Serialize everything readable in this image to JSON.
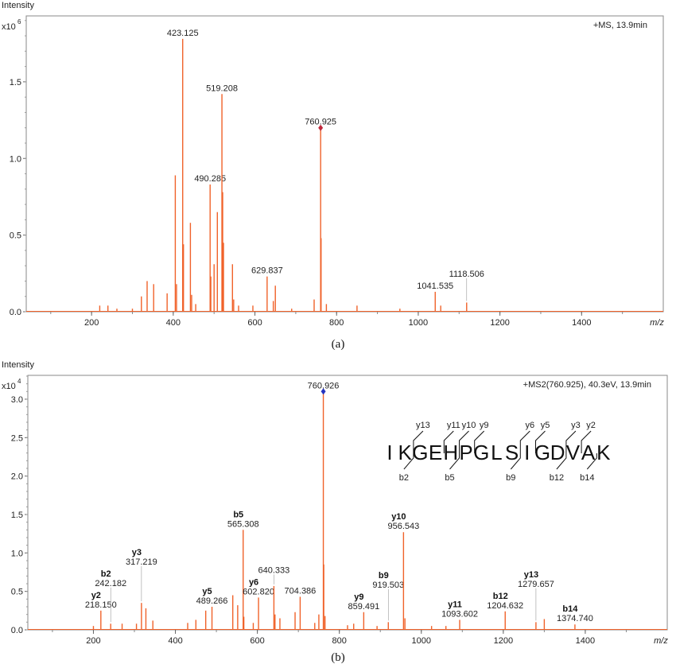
{
  "chart_data": [
    {
      "type": "bar",
      "panel_caption": "(a)",
      "ylabel": "Intensity",
      "y_multiplier": "x10",
      "y_exponent": "6",
      "xlabel": "m/z",
      "annotation": "+MS, 13.9min",
      "xlim": [
        40,
        1600
      ],
      "ylim": [
        0,
        1.93
      ],
      "x_ticks": [
        200,
        400,
        600,
        800,
        1000,
        1200,
        1400
      ],
      "y_ticks": [
        "0.0",
        "0.5",
        "1.0",
        "1.5"
      ],
      "bar_color": "#f0622a",
      "precursor_marker": {
        "x": 760.925,
        "color": "#c0283c"
      },
      "peaks": [
        {
          "x": 220,
          "y": 0.04
        },
        {
          "x": 240,
          "y": 0.04
        },
        {
          "x": 262,
          "y": 0.02
        },
        {
          "x": 300,
          "y": 0.02
        },
        {
          "x": 322,
          "y": 0.1
        },
        {
          "x": 336,
          "y": 0.2
        },
        {
          "x": 352,
          "y": 0.18
        },
        {
          "x": 385,
          "y": 0.12
        },
        {
          "x": 405,
          "y": 0.89
        },
        {
          "x": 408,
          "y": 0.18
        },
        {
          "x": 423.125,
          "y": 1.78,
          "label": "423.125"
        },
        {
          "x": 425,
          "y": 0.44
        },
        {
          "x": 442,
          "y": 0.58
        },
        {
          "x": 445,
          "y": 0.11
        },
        {
          "x": 455,
          "y": 0.05
        },
        {
          "x": 490.285,
          "y": 0.83,
          "label": "490.285"
        },
        {
          "x": 492,
          "y": 0.23
        },
        {
          "x": 500,
          "y": 0.31
        },
        {
          "x": 508,
          "y": 0.65
        },
        {
          "x": 519.208,
          "y": 1.42,
          "label": "519.208"
        },
        {
          "x": 521,
          "y": 0.78
        },
        {
          "x": 523,
          "y": 0.45
        },
        {
          "x": 545,
          "y": 0.31
        },
        {
          "x": 548,
          "y": 0.08
        },
        {
          "x": 560,
          "y": 0.04
        },
        {
          "x": 595,
          "y": 0.04
        },
        {
          "x": 629.837,
          "y": 0.23,
          "label": "629.837"
        },
        {
          "x": 645,
          "y": 0.07
        },
        {
          "x": 650,
          "y": 0.17
        },
        {
          "x": 690,
          "y": 0.02
        },
        {
          "x": 745,
          "y": 0.08
        },
        {
          "x": 760.925,
          "y": 1.2,
          "label": "760.925"
        },
        {
          "x": 762,
          "y": 0.48
        },
        {
          "x": 775,
          "y": 0.05
        },
        {
          "x": 850,
          "y": 0.04
        },
        {
          "x": 955,
          "y": 0.02
        },
        {
          "x": 1041.535,
          "y": 0.13,
          "label": "1041.535"
        },
        {
          "x": 1055,
          "y": 0.04
        },
        {
          "x": 1118.506,
          "y": 0.06,
          "label": "1118.506"
        }
      ]
    },
    {
      "type": "bar",
      "panel_caption": "(b)",
      "ylabel": "Intensity",
      "y_multiplier": "x10",
      "y_exponent": "4",
      "xlabel": "m/z",
      "annotation": "+MS2(760.925), 40.3eV, 13.9min",
      "xlim": [
        40,
        1600
      ],
      "ylim": [
        0,
        3.31
      ],
      "x_ticks": [
        200,
        400,
        600,
        800,
        1000,
        1200,
        1400
      ],
      "y_ticks": [
        "0.0",
        "0.5",
        "1.0",
        "1.5",
        "2.0",
        "2.5",
        "3.0"
      ],
      "bar_color": "#f0622a",
      "precursor_marker": {
        "x": 760.926,
        "color": "#2434c0"
      },
      "peaks": [
        {
          "x": 200,
          "y": 0.05
        },
        {
          "x": 218.15,
          "y": 0.25,
          "label": "218.150",
          "ion": "y2"
        },
        {
          "x": 242.182,
          "y": 0.08,
          "label": "242.182",
          "ion": "b2"
        },
        {
          "x": 270,
          "y": 0.08
        },
        {
          "x": 305,
          "y": 0.08
        },
        {
          "x": 317.219,
          "y": 0.35,
          "label": "317.219",
          "ion": "y3"
        },
        {
          "x": 328,
          "y": 0.28
        },
        {
          "x": 345,
          "y": 0.12
        },
        {
          "x": 430,
          "y": 0.09
        },
        {
          "x": 450,
          "y": 0.13
        },
        {
          "x": 474,
          "y": 0.25
        },
        {
          "x": 489.266,
          "y": 0.3,
          "label": "489.266",
          "ion": "y5"
        },
        {
          "x": 540,
          "y": 0.45
        },
        {
          "x": 552,
          "y": 0.32
        },
        {
          "x": 565.308,
          "y": 1.3,
          "label": "565.308",
          "ion": "b5"
        },
        {
          "x": 567,
          "y": 0.17
        },
        {
          "x": 590,
          "y": 0.09
        },
        {
          "x": 602.82,
          "y": 0.42,
          "label": "602.820",
          "ion": "y6"
        },
        {
          "x": 640.333,
          "y": 0.57,
          "label": "640.333"
        },
        {
          "x": 643,
          "y": 0.2
        },
        {
          "x": 655,
          "y": 0.15
        },
        {
          "x": 692,
          "y": 0.23
        },
        {
          "x": 704.386,
          "y": 0.43,
          "label": "704.386"
        },
        {
          "x": 740,
          "y": 0.09
        },
        {
          "x": 750,
          "y": 0.2
        },
        {
          "x": 760.926,
          "y": 3.1,
          "label": "760.926"
        },
        {
          "x": 762,
          "y": 0.85
        },
        {
          "x": 765,
          "y": 0.18
        },
        {
          "x": 820,
          "y": 0.06
        },
        {
          "x": 835,
          "y": 0.08
        },
        {
          "x": 859.491,
          "y": 0.23,
          "label": "859.491",
          "ion": "y9"
        },
        {
          "x": 892,
          "y": 0.05
        },
        {
          "x": 919.503,
          "y": 0.1,
          "label": "919.503",
          "ion": "b9"
        },
        {
          "x": 956.543,
          "y": 1.27,
          "label": "956.543",
          "ion": "y10"
        },
        {
          "x": 960,
          "y": 0.15
        },
        {
          "x": 1025,
          "y": 0.05
        },
        {
          "x": 1060,
          "y": 0.05
        },
        {
          "x": 1093.602,
          "y": 0.13,
          "label": "1093.602",
          "ion": "y11"
        },
        {
          "x": 1204.632,
          "y": 0.24,
          "label": "1204.632",
          "ion": "b12"
        },
        {
          "x": 1279.657,
          "y": 0.1,
          "label": "1279.657",
          "ion": "y13"
        },
        {
          "x": 1300,
          "y": 0.14
        },
        {
          "x": 1374.74,
          "y": 0.07,
          "label": "1374.740",
          "ion": "b14"
        }
      ],
      "sequence": {
        "residues": [
          "I",
          "K",
          "G",
          "E",
          "H",
          "P",
          "G",
          "L",
          "S",
          "I",
          "G",
          "D",
          "V",
          "A",
          "K"
        ],
        "y_ions": [
          {
            "after": 2,
            "label": "y13"
          },
          {
            "after": 4,
            "label": "y11"
          },
          {
            "after": 5,
            "label": "y10"
          },
          {
            "after": 6,
            "label": "y9"
          },
          {
            "after": 9,
            "label": "y6"
          },
          {
            "after": 10,
            "label": "y5"
          },
          {
            "after": 12,
            "label": "y3"
          },
          {
            "after": 13,
            "label": "y2"
          }
        ],
        "b_ions": [
          {
            "after": 2,
            "label": "b2"
          },
          {
            "after": 5,
            "label": "b5"
          },
          {
            "after": 9,
            "label": "b9"
          },
          {
            "after": 12,
            "label": "b12"
          },
          {
            "after": 14,
            "label": "b14"
          }
        ]
      }
    }
  ]
}
